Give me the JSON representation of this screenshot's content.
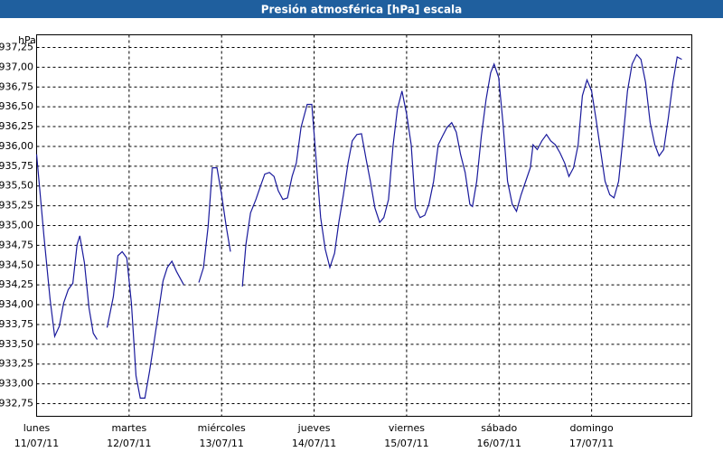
{
  "chart_data": {
    "type": "line",
    "title": "Presión atmosférica [hPa] escala",
    "y_label": "hPa",
    "color": "#1a1a9c",
    "grid": true,
    "xlim": [
      0,
      170
    ],
    "ylim": [
      932.59,
      937.41
    ],
    "xticks": [
      {
        "value": 0,
        "label": "lunes"
      },
      {
        "value": 24,
        "label": "martes"
      },
      {
        "value": 48,
        "label": "miércoles"
      },
      {
        "value": 72,
        "label": "jueves"
      },
      {
        "value": 96,
        "label": "viernes"
      },
      {
        "value": 120,
        "label": "sábado"
      },
      {
        "value": 144,
        "label": "domingo"
      }
    ],
    "xtick_dates": [
      "11/07/11",
      "12/07/11",
      "13/07/11",
      "14/07/11",
      "15/07/11",
      "16/07/11",
      "17/07/11"
    ],
    "yticks": [
      {
        "value": 932.75,
        "label": "932,75"
      },
      {
        "value": 933,
        "label": "933,00"
      },
      {
        "value": 933.25,
        "label": "933,25"
      },
      {
        "value": 933.5,
        "label": "933,50"
      },
      {
        "value": 933.75,
        "label": "933,75"
      },
      {
        "value": 934,
        "label": "934,00"
      },
      {
        "value": 934.25,
        "label": "934,25"
      },
      {
        "value": 934.5,
        "label": "934,50"
      },
      {
        "value": 934.75,
        "label": "934,75"
      },
      {
        "value": 935,
        "label": "935,00"
      },
      {
        "value": 935.25,
        "label": "935,25"
      },
      {
        "value": 935.5,
        "label": "935,50"
      },
      {
        "value": 935.75,
        "label": "935,75"
      },
      {
        "value": 936,
        "label": "936,00"
      },
      {
        "value": 936.25,
        "label": "936,25"
      },
      {
        "value": 936.5,
        "label": "936,50"
      },
      {
        "value": 936.75,
        "label": "936,75"
      },
      {
        "value": 937,
        "label": "937,00"
      },
      {
        "value": 937.25,
        "label": "937,25"
      }
    ],
    "x": [
      0,
      1.9,
      3.5,
      4.7,
      5.9,
      7.0,
      8.2,
      9.4,
      10.5,
      11.2,
      12.4,
      13.6,
      14.7,
      15.7,
      17,
      18.3,
      19.9,
      21.1,
      22.2,
      23.4,
      24.6,
      25.8,
      26.9,
      28.1,
      29.3,
      30.4,
      31.6,
      32.8,
      33.9,
      35.1,
      36.3,
      38.2,
      39.5,
      42.1,
      43.3,
      44.5,
      45.6,
      46.8,
      48.0,
      49.2,
      50.3,
      51.5,
      53.4,
      54.3,
      55.5,
      56.9,
      58.1,
      59.2,
      60.4,
      61.6,
      62.7,
      63.9,
      65.1,
      66.3,
      67.4,
      68.6,
      70.2,
      71.4,
      72.6,
      73.7,
      74.9,
      76.1,
      77.3,
      78.4,
      79.6,
      80.8,
      81.9,
      83.1,
      84.3,
      85.5,
      86.6,
      87.8,
      89.0,
      90.1,
      91.3,
      92.5,
      93.6,
      94.8,
      96.0,
      97.2,
      98.3,
      99.5,
      100.7,
      101.8,
      103.0,
      104.2,
      105.3,
      106.5,
      107.7,
      108.9,
      110.0,
      111.2,
      112.4,
      113.1,
      114.2,
      115.4,
      116.6,
      117.8,
      118.7,
      119.9,
      121.0,
      122.2,
      123.4,
      124.5,
      125.7,
      126.9,
      128.1,
      128.8,
      129.9,
      131.1,
      132.3,
      133.4,
      134.6,
      135.8,
      137.0,
      138.1,
      139.3,
      140.5,
      141.6,
      142.8,
      144.0,
      145.1,
      146.3,
      147.5,
      148.7,
      149.8,
      151.0,
      152.2,
      153.3,
      154.5,
      155.7,
      156.8,
      158.0,
      159.2,
      160.4,
      161.5,
      162.7,
      163.9,
      165.1,
      166.2,
      167.4
    ],
    "values": [
      935.9,
      934.87,
      934.07,
      933.6,
      933.73,
      934.02,
      934.19,
      934.27,
      934.76,
      934.87,
      934.53,
      933.96,
      933.64,
      933.56,
      null,
      933.71,
      934.1,
      934.62,
      934.67,
      934.59,
      934.02,
      933.1,
      932.82,
      932.82,
      933.16,
      933.5,
      933.9,
      934.3,
      934.47,
      934.55,
      934.42,
      934.25,
      null,
      934.28,
      934.47,
      934.99,
      935.73,
      935.73,
      935.39,
      934.99,
      934.67,
      null,
      934.23,
      934.76,
      935.16,
      935.33,
      935.5,
      935.65,
      935.67,
      935.62,
      935.44,
      935.33,
      935.35,
      935.62,
      935.79,
      936.24,
      936.53,
      936.53,
      935.79,
      935.1,
      934.7,
      934.47,
      934.65,
      935.04,
      935.39,
      935.79,
      936.07,
      936.15,
      936.16,
      935.84,
      935.56,
      935.22,
      935.04,
      935.1,
      935.33,
      936.02,
      936.47,
      936.7,
      936.41,
      936.02,
      935.22,
      935.1,
      935.13,
      935.27,
      935.56,
      936.02,
      936.13,
      936.24,
      936.3,
      936.18,
      935.9,
      935.67,
      935.27,
      935.24,
      935.56,
      936.13,
      936.59,
      936.93,
      937.04,
      936.87,
      936.3,
      935.56,
      935.27,
      935.18,
      935.39,
      935.56,
      935.73,
      936.02,
      935.96,
      936.07,
      936.15,
      936.07,
      936.02,
      935.92,
      935.79,
      935.62,
      935.73,
      936.02,
      936.64,
      936.84,
      936.7,
      936.36,
      935.96,
      935.56,
      935.39,
      935.35,
      935.56,
      936.13,
      936.7,
      937.04,
      937.16,
      937.1,
      936.81,
      936.3,
      936.02,
      935.88,
      935.96,
      936.36,
      936.81,
      937.13,
      937.1
    ]
  }
}
